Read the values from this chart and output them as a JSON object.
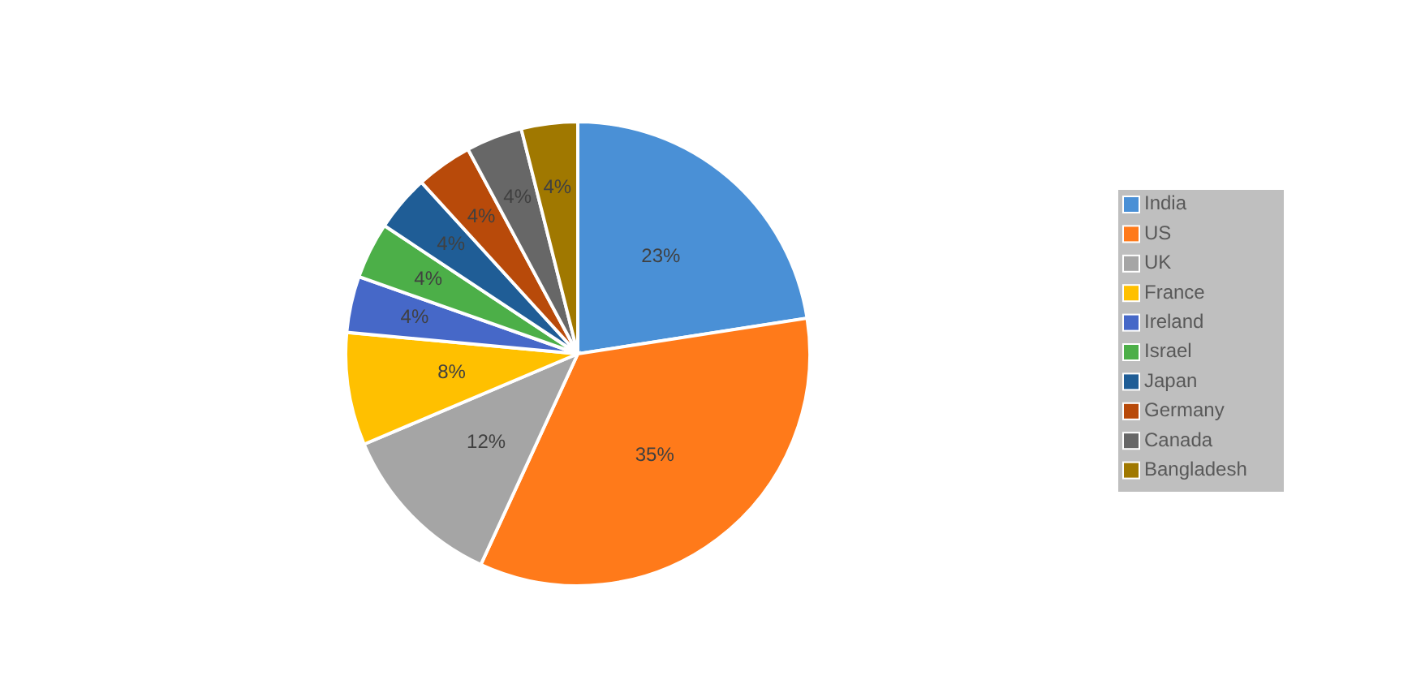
{
  "chart_data": {
    "type": "pie",
    "categories": [
      "India",
      "US",
      "UK",
      "France",
      "Ireland",
      "Israel",
      "Japan",
      "Germany",
      "Canada",
      "Bangladesh"
    ],
    "values": [
      23,
      35,
      12,
      8,
      4,
      4,
      4,
      4,
      4,
      4
    ],
    "value_labels": [
      "23%",
      "35%",
      "12%",
      "8%",
      "4%",
      "4%",
      "4%",
      "4%",
      "4%",
      "4%"
    ],
    "colors": [
      "#4a90d6",
      "#ff7a1a",
      "#a5a5a5",
      "#ffc000",
      "#4668c8",
      "#4caf48",
      "#1f5d96",
      "#b84a0a",
      "#676767",
      "#a07800"
    ],
    "legend": "right"
  }
}
